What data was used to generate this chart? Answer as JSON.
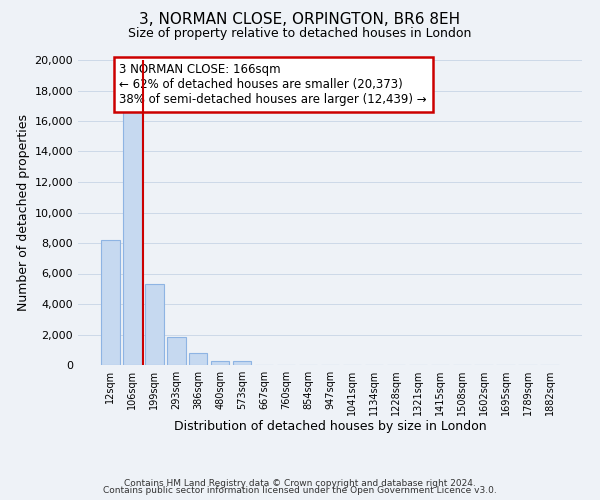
{
  "title1": "3, NORMAN CLOSE, ORPINGTON, BR6 8EH",
  "title2": "Size of property relative to detached houses in London",
  "xlabel": "Distribution of detached houses by size in London",
  "ylabel": "Number of detached properties",
  "bar_labels": [
    "12sqm",
    "106sqm",
    "199sqm",
    "293sqm",
    "386sqm",
    "480sqm",
    "573sqm",
    "667sqm",
    "760sqm",
    "854sqm",
    "947sqm",
    "1041sqm",
    "1134sqm",
    "1228sqm",
    "1321sqm",
    "1415sqm",
    "1508sqm",
    "1602sqm",
    "1695sqm",
    "1789sqm",
    "1882sqm"
  ],
  "bar_values": [
    8200,
    16600,
    5300,
    1850,
    780,
    290,
    270,
    0,
    0,
    0,
    0,
    0,
    0,
    0,
    0,
    0,
    0,
    0,
    0,
    0,
    0
  ],
  "bar_color": "#c6d9f0",
  "bar_edge_color": "#8eb4e3",
  "vline_color": "#cc0000",
  "annotation_title": "3 NORMAN CLOSE: 166sqm",
  "annotation_line1": "← 62% of detached houses are smaller (20,373)",
  "annotation_line2": "38% of semi-detached houses are larger (12,439) →",
  "annotation_box_color": "#ffffff",
  "annotation_box_edge": "#cc0000",
  "ylim": [
    0,
    20000
  ],
  "yticks": [
    0,
    2000,
    4000,
    6000,
    8000,
    10000,
    12000,
    14000,
    16000,
    18000,
    20000
  ],
  "grid_color": "#ccd9e8",
  "footer1": "Contains HM Land Registry data © Crown copyright and database right 2024.",
  "footer2": "Contains public sector information licensed under the Open Government Licence v3.0.",
  "bg_color": "#eef2f7"
}
